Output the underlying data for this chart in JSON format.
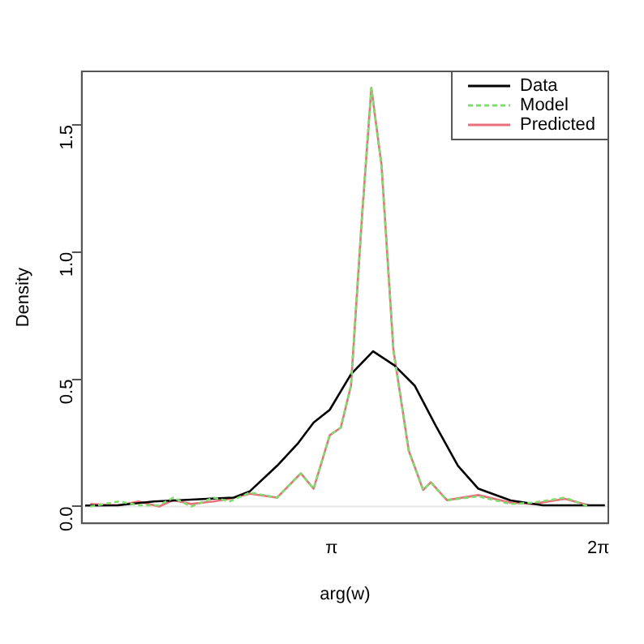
{
  "chart_data": {
    "type": "line",
    "xlabel": "arg(w)",
    "ylabel": "Density",
    "xlim": [
      0.2,
      6.4
    ],
    "xticks": [
      {
        "value": 3.14159,
        "label": "π"
      },
      {
        "value": 6.28319,
        "label": "2π"
      }
    ],
    "ylim": [
      -0.066,
      1.71
    ],
    "yticks": [
      {
        "value": 0,
        "label": "0.0"
      },
      {
        "value": 0.5,
        "label": "0.5"
      },
      {
        "value": 1,
        "label": "1.0"
      },
      {
        "value": 1.5,
        "label": "1.5"
      }
    ],
    "grid": false,
    "legend": "top right",
    "marker": "none",
    "ref_lines": [
      {
        "axis": "y",
        "value": 0,
        "color": "#e6e6e6"
      }
    ],
    "series": [
      {
        "name": "Data",
        "color": "#000000",
        "line_style": "solid",
        "x": [
          0.24,
          0.62,
          1.05,
          1.99,
          2.18,
          2.5,
          2.75,
          2.93,
          3.12,
          3.37,
          3.63,
          3.88,
          4.12,
          4.38,
          4.63,
          4.87,
          5.25,
          5.63,
          6.13,
          6.36
        ],
        "values": [
          0.004,
          0.005,
          0.02,
          0.035,
          0.06,
          0.16,
          0.25,
          0.33,
          0.38,
          0.52,
          0.61,
          0.555,
          0.475,
          0.31,
          0.16,
          0.07,
          0.024,
          0.005,
          0.005,
          0.005
        ]
      },
      {
        "name": "Model",
        "color": "#7fdc6f",
        "line_style": "dashed",
        "x": [
          0.3,
          0.64,
          0.87,
          1.11,
          1.28,
          1.49,
          1.75,
          1.94,
          2.18,
          2.5,
          2.78,
          2.93,
          3.12,
          3.25,
          3.37,
          3.5,
          3.61,
          3.73,
          3.87,
          4.05,
          4.22,
          4.31,
          4.5,
          4.87,
          5.25,
          5.51,
          5.89,
          6.17
        ],
        "values": [
          0,
          0.02,
          0.005,
          0.005,
          0.035,
          0,
          0.035,
          0.02,
          0.055,
          0.035,
          0.13,
          0.07,
          0.28,
          0.31,
          0.475,
          1.14,
          1.645,
          1.34,
          0.615,
          0.22,
          0.065,
          0.095,
          0.025,
          0.04,
          0.01,
          0.015,
          0.035,
          0
        ]
      },
      {
        "name": "Predicted",
        "color": "#e8707a",
        "line_style": "solid",
        "x": [
          0.3,
          0.64,
          0.87,
          1.11,
          1.28,
          1.49,
          1.75,
          1.94,
          2.18,
          2.5,
          2.78,
          2.93,
          3.12,
          3.25,
          3.37,
          3.5,
          3.61,
          3.73,
          3.87,
          4.05,
          4.22,
          4.31,
          4.5,
          4.87,
          5.25,
          5.51,
          5.89,
          6.17
        ],
        "values": [
          0.01,
          0.005,
          0.02,
          0.0,
          0.025,
          0.01,
          0.02,
          0.03,
          0.05,
          0.035,
          0.13,
          0.07,
          0.28,
          0.31,
          0.475,
          1.14,
          1.645,
          1.34,
          0.615,
          0.22,
          0.065,
          0.095,
          0.025,
          0.045,
          0.015,
          0.01,
          0.03,
          0.005
        ]
      }
    ]
  }
}
